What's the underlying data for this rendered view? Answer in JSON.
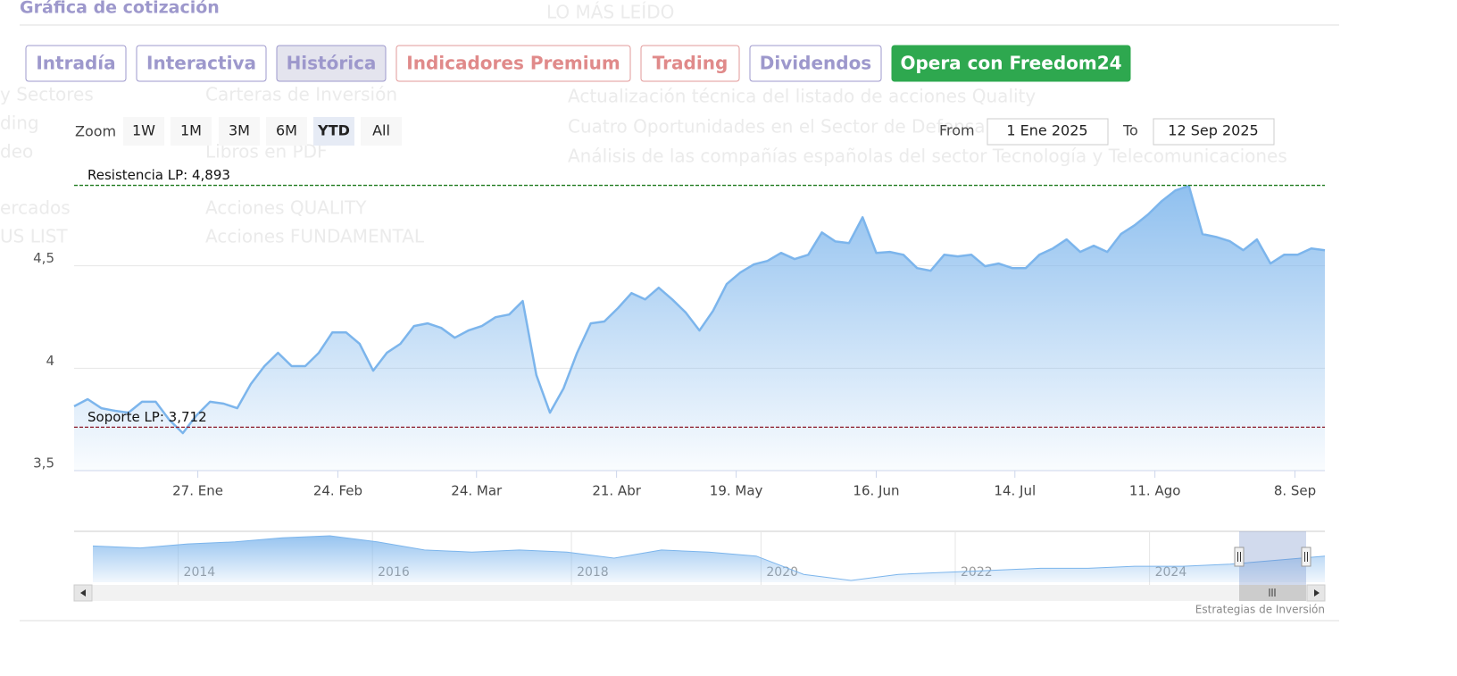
{
  "header": {
    "title": "Gráfica de cotización"
  },
  "background_text": [
    "LO MÁS LEÍDO",
    "y Sectores",
    "ding",
    "deo",
    "ercados",
    "US LIST",
    "Carteras de Inversión",
    "Libros en PDF",
    "Acciones QUALITY",
    "Acciones FUNDAMENTAL",
    "Actualización técnica del listado de acciones Quality",
    "Cuatro Oportunidades en el Sector de Defensa",
    "Análisis de las compañías españolas del sector Tecnología y Telecomunicaciones"
  ],
  "tabs": [
    {
      "label": "Intradía",
      "style": "plain"
    },
    {
      "label": "Interactiva",
      "style": "plain"
    },
    {
      "label": "Histórica",
      "style": "active"
    },
    {
      "label": "Indicadores Premium",
      "style": "premium"
    },
    {
      "label": "Trading",
      "style": "premium"
    },
    {
      "label": "Dividendos",
      "style": "plain"
    },
    {
      "label": "Opera con Freedom24",
      "style": "cta"
    }
  ],
  "range_selector": {
    "zoom_label": "Zoom",
    "buttons": [
      "1W",
      "1M",
      "3M",
      "6M",
      "YTD",
      "All"
    ],
    "selected": "YTD",
    "from_label": "From",
    "from": "1 Ene 2025",
    "to_label": "To",
    "to": "12 Sep 2025"
  },
  "chart_data": {
    "type": "area",
    "color": "#7cb5ec",
    "values": [
      3.814,
      3.849,
      3.805,
      3.792,
      3.783,
      3.836,
      3.836,
      3.748,
      3.683,
      3.77,
      3.836,
      3.827,
      3.805,
      3.923,
      4.01,
      4.075,
      4.01,
      4.01,
      4.075,
      4.175,
      4.175,
      4.119,
      3.988,
      4.075,
      4.119,
      4.206,
      4.219,
      4.197,
      4.149,
      4.184,
      4.206,
      4.249,
      4.262,
      4.328,
      3.966,
      3.783,
      3.901,
      4.075,
      4.219,
      4.228,
      4.293,
      4.367,
      4.336,
      4.393,
      4.336,
      4.271,
      4.184,
      4.28,
      4.411,
      4.467,
      4.507,
      4.524,
      4.563,
      4.533,
      4.554,
      4.663,
      4.619,
      4.611,
      4.737,
      4.563,
      4.568,
      4.554,
      4.489,
      4.476,
      4.554,
      4.546,
      4.554,
      4.498,
      4.511,
      4.489,
      4.489,
      4.554,
      4.585,
      4.629,
      4.568,
      4.598,
      4.568,
      4.655,
      4.698,
      4.751,
      4.816,
      4.868,
      4.89,
      4.655,
      4.641,
      4.62,
      4.576,
      4.629,
      4.511,
      4.554,
      4.554,
      4.585,
      4.576
    ],
    "xticks": [
      {
        "value": 9.1,
        "label": "27. Ene"
      },
      {
        "value": 19.4,
        "label": "24. Feb"
      },
      {
        "value": 29.6,
        "label": "24. Mar"
      },
      {
        "value": 39.9,
        "label": "21. Abr"
      },
      {
        "value": 48.7,
        "label": "19. May"
      },
      {
        "value": 59,
        "label": "16. Jun"
      },
      {
        "value": 69.2,
        "label": "14. Jul"
      },
      {
        "value": 79.5,
        "label": "11. Ago"
      },
      {
        "value": 89.8,
        "label": "8. Sep"
      }
    ],
    "ylim": [
      3.5,
      5
    ],
    "yticks": [
      {
        "value": 3.5,
        "label": "3,5"
      },
      4,
      {
        "value": 4.5,
        "label": "4,5"
      }
    ],
    "grid": true,
    "plot_lines": [
      {
        "label": "Resistencia LP: 4,893",
        "value": 4.893,
        "color": "#1e7a1e"
      },
      {
        "label": "Soporte LP: 3,712",
        "value": 3.712,
        "color": "#8b1a2a"
      }
    ],
    "navigator": {
      "values": [
        4.1,
        4.0,
        4.2,
        4.3,
        4.5,
        4.6,
        4.3,
        3.9,
        3.8,
        3.9,
        3.8,
        3.5,
        3.9,
        3.8,
        3.6,
        2.7,
        2.4,
        2.7,
        2.8,
        2.9,
        3.0,
        3.0,
        3.1,
        3.1,
        3.2,
        3.4,
        3.6
      ],
      "xticks": [
        {
          "value": 1.8,
          "label": "2014"
        },
        {
          "value": 5.9,
          "label": "2016"
        },
        {
          "value": 10.1,
          "label": "2018"
        },
        {
          "value": 14.1,
          "label": "2020"
        },
        {
          "value": 18.2,
          "label": "2022"
        },
        {
          "value": 22.3,
          "label": "2024"
        }
      ]
    },
    "credits": "Estrategias de Inversión"
  }
}
